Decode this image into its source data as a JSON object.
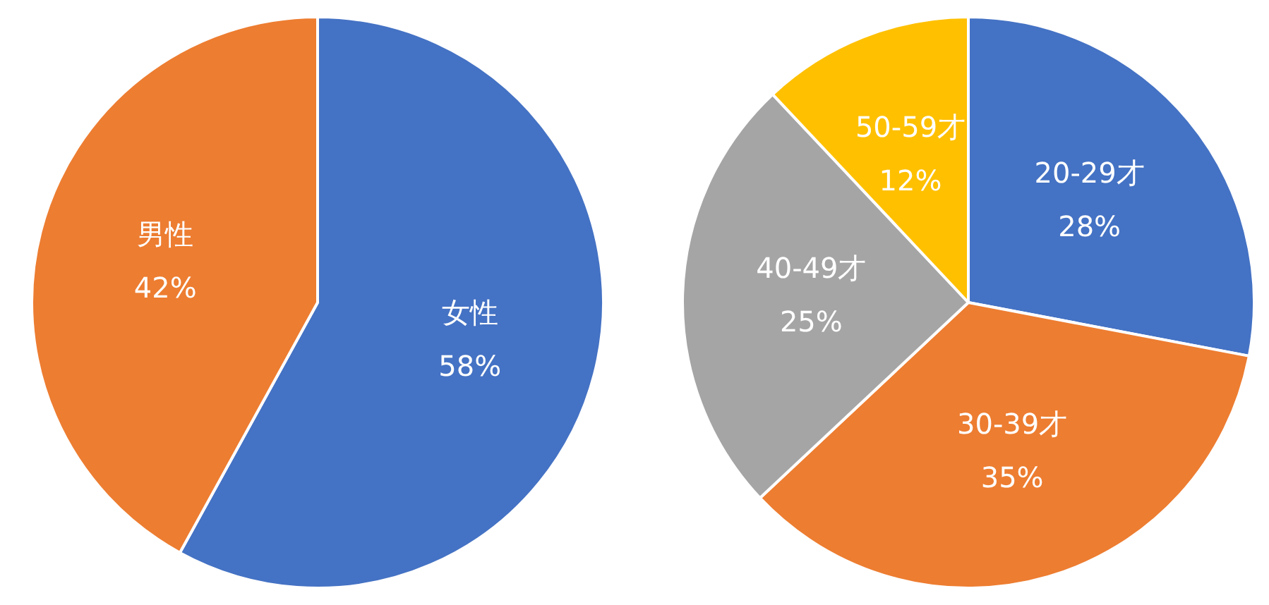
{
  "chart_data": [
    {
      "type": "pie",
      "categories": [
        "女性",
        "男性"
      ],
      "values": [
        58,
        42
      ],
      "colors": [
        "#4472c4",
        "#ed7d31"
      ],
      "value_labels": [
        "58%",
        "42%"
      ]
    },
    {
      "type": "pie",
      "categories": [
        "20-29才",
        "30-39才",
        "40-49才",
        "50-59才"
      ],
      "values": [
        28,
        35,
        25,
        12
      ],
      "colors": [
        "#4472c4",
        "#ed7d31",
        "#a5a5a5",
        "#ffc000"
      ],
      "value_labels": [
        "28%",
        "35%",
        "25%",
        "12%"
      ]
    }
  ]
}
